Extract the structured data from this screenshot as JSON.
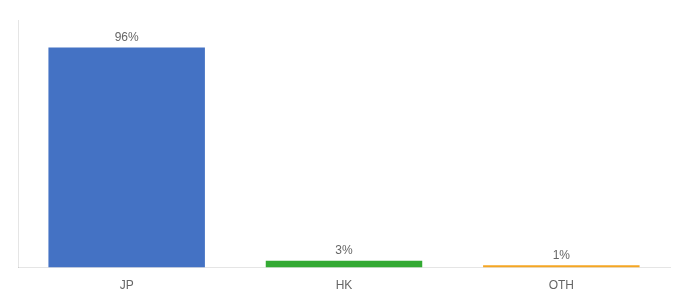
{
  "chart_data": {
    "type": "bar",
    "categories": [
      "JP",
      "HK",
      "OTH"
    ],
    "values": [
      96,
      3,
      1
    ],
    "value_labels": [
      "96%",
      "3%",
      "1%"
    ],
    "colors": [
      "#4472C4",
      "#33AA33",
      "#F5A623"
    ],
    "ylim": [
      0,
      108
    ],
    "grid": false,
    "data_labels": true,
    "tick_labels": "x"
  }
}
